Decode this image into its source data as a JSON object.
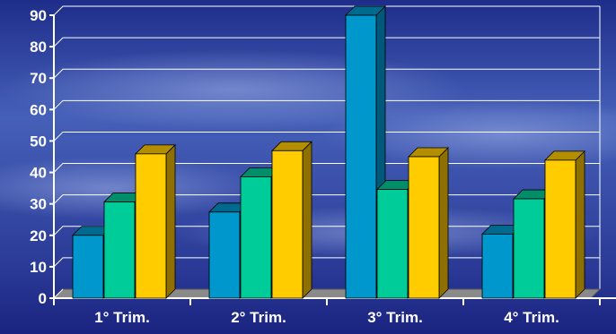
{
  "chart_data": {
    "type": "bar",
    "categories": [
      "1° Trim.",
      "2° Trim.",
      "3° Trim.",
      "4° Trim."
    ],
    "series": [
      {
        "values": [
          20,
          27.4,
          90,
          20.4
        ]
      },
      {
        "values": [
          30.6,
          38.6,
          34.6,
          31.6
        ]
      },
      {
        "values": [
          45.9,
          46.9,
          45,
          43.9
        ]
      }
    ],
    "ylim": [
      0,
      90
    ],
    "yticks": [
      0,
      10,
      20,
      30,
      40,
      50,
      60,
      70,
      80,
      90
    ],
    "grid": true,
    "legend": "none",
    "style": "3d-clustered-columns"
  },
  "colors": {
    "series_front": [
      "#0098cc",
      "#00cc99",
      "#ffcc00"
    ],
    "series_top": [
      "#006a8e",
      "#008e6a",
      "#b28e00"
    ],
    "series_side": [
      "#00587a",
      "#007a58",
      "#8e7000"
    ],
    "axis": "#ffffff",
    "grid": "#ffffff",
    "floor": "#8a8a8a",
    "background_top": "#1e2d8a",
    "background_mid": "#3f56b0",
    "background_bottom": "#1a2380"
  }
}
